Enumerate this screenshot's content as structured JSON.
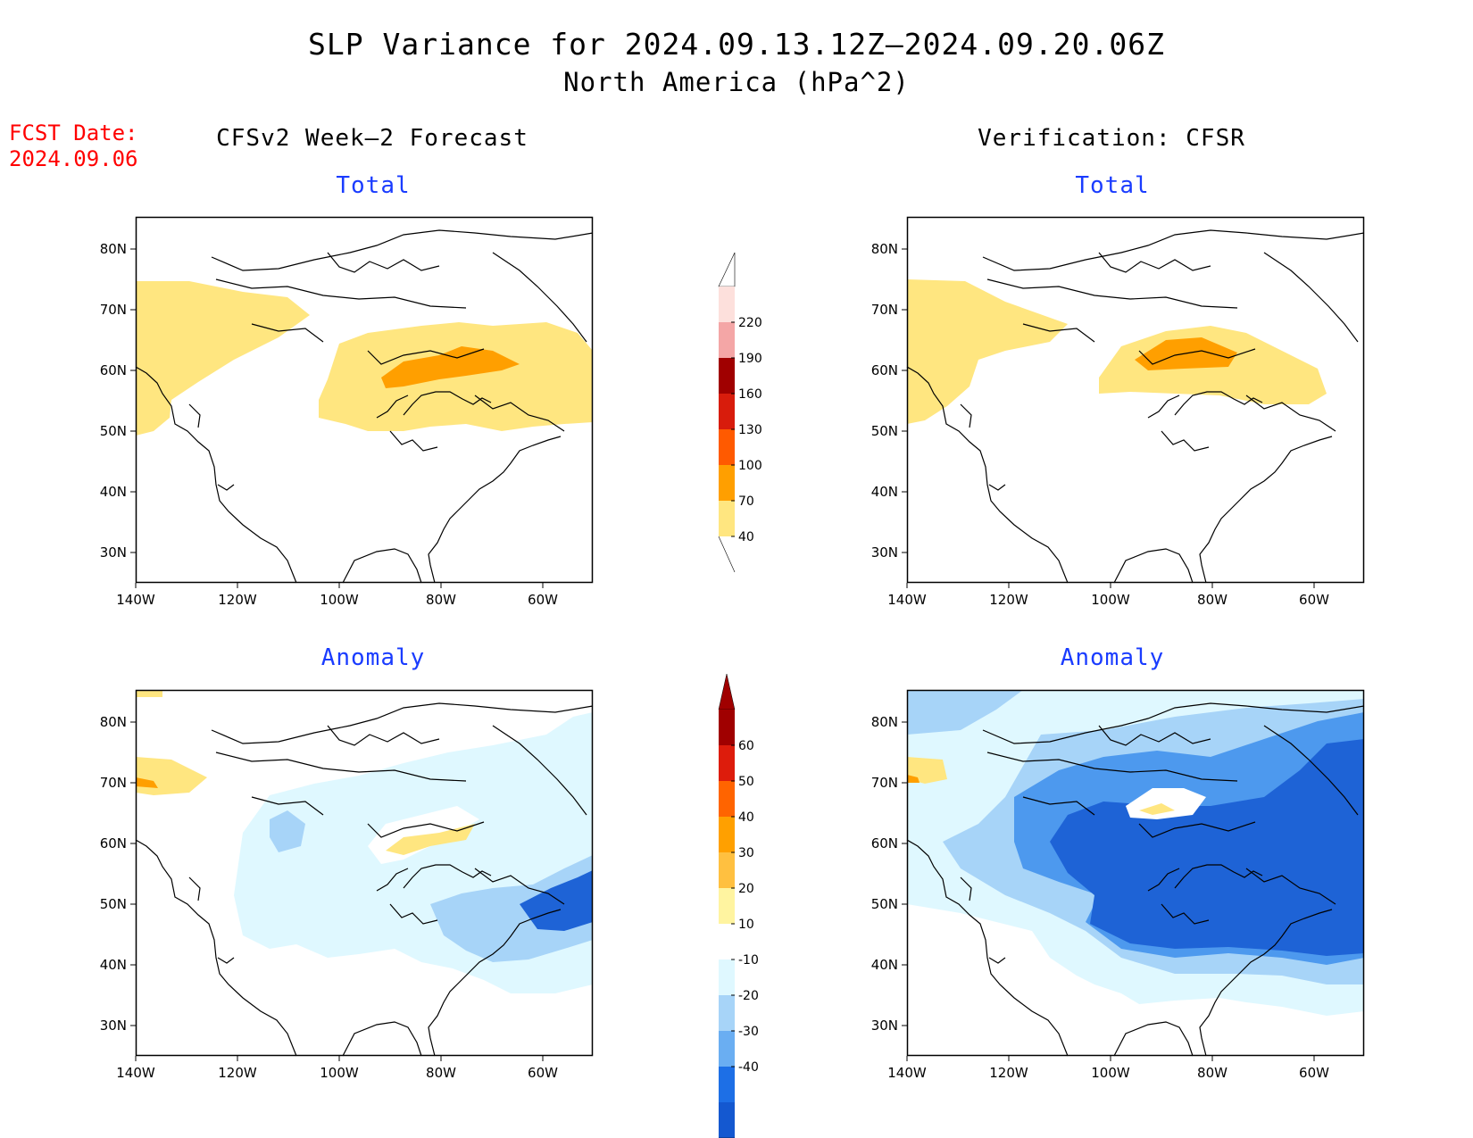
{
  "header": {
    "title": "SLP Variance for 2024.09.13.12Z—2024.09.20.06Z",
    "subtitle": "North America (hPa^2)",
    "fcst_label": "FCST Date:",
    "fcst_date": "2024.09.06"
  },
  "columns": {
    "left": "CFSv2 Week—2 Forecast",
    "right": "Verification: CFSR"
  },
  "panels": {
    "total_label": "Total",
    "anomaly_label": "Anomaly"
  },
  "axes": {
    "lat_ticks": [
      "80N",
      "70N",
      "60N",
      "50N",
      "40N",
      "30N"
    ],
    "lon_ticks": [
      "140W",
      "120W",
      "100W",
      "80W",
      "60W"
    ]
  },
  "colorbars": {
    "total": {
      "labels": [
        "220",
        "190",
        "160",
        "130",
        "100",
        "70",
        "40"
      ],
      "colors": [
        "#fde0dc",
        "#f4a6a6",
        "#a00000",
        "#d81c0c",
        "#ff5a00",
        "#ff9f00",
        "#ffe680"
      ]
    },
    "anomaly": {
      "labels": [
        "60",
        "50",
        "40",
        "30",
        "20",
        "10",
        "-10",
        "-20",
        "-30",
        "-40"
      ],
      "colors": [
        "#a00000",
        "#dd1c0c",
        "#ff6400",
        "#ffa000",
        "#ffc040",
        "#fff4a0",
        "#ffffff",
        "#dff8ff",
        "#a7d4f8",
        "#6aaef2",
        "#1d6fe6",
        "#1458d0"
      ]
    }
  },
  "colors": {
    "title_blue": "#1a3cff",
    "fcst_red": "#ff0000",
    "yellow": "#ffe680",
    "orange": "#ff9f00",
    "pale_blue": "#dff8ff",
    "light_blue": "#a7d4f8",
    "mid_blue": "#4d99ee",
    "deep_blue": "#1e63d6",
    "dark_blue": "#1a56c8"
  }
}
